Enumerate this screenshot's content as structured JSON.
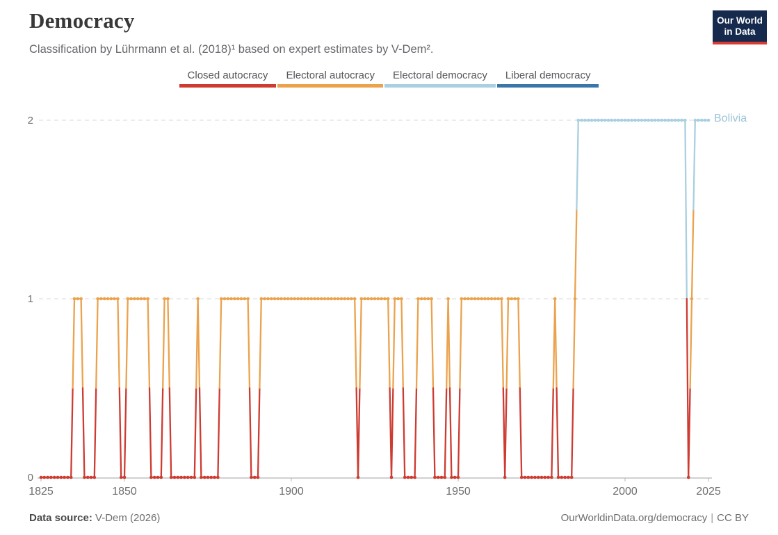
{
  "header": {
    "title": "Democracy",
    "subtitle": "Classification by Lührmann et al. (2018)¹ based on expert estimates by V-Dem²."
  },
  "logo": {
    "line1": "Our World",
    "line2": "in Data"
  },
  "legend": [
    {
      "label": "Closed autocracy",
      "value": 0,
      "color": "#cd3b31"
    },
    {
      "label": "Electoral autocracy",
      "value": 1,
      "color": "#eba24d"
    },
    {
      "label": "Electoral democracy",
      "value": 2,
      "color": "#a9cfe0"
    },
    {
      "label": "Liberal democracy",
      "value": 3,
      "color": "#3b76a8"
    }
  ],
  "chart_data": {
    "type": "line",
    "title": "Democracy",
    "entity": "Bolivia",
    "entity_label_color": "#9cc4d7",
    "xlabel": "",
    "ylabel": "",
    "x_range": [
      1825,
      2025
    ],
    "y_range": [
      0,
      2
    ],
    "x_ticks": [
      1825,
      1850,
      1900,
      1950,
      2000,
      2025
    ],
    "y_ticks": [
      0,
      1,
      2
    ],
    "grid": "dashed horizontal gridlines at y=1 and y=2, solid baseline at y=0",
    "legend_position": "top-center",
    "value_labels": {
      "0": "Closed autocracy",
      "1": "Electoral autocracy",
      "2": "Electoral democracy",
      "3": "Liberal democracy"
    },
    "value_colors": {
      "0": "#cd3b31",
      "1": "#eba24d",
      "2": "#a9cfe0",
      "3": "#3b76a8"
    },
    "series": [
      {
        "name": "Bolivia",
        "segments_note": "each entry is [startYear, endYear, regimeValue]; one data point per year",
        "segments": [
          [
            1825,
            1834,
            0
          ],
          [
            1835,
            1837,
            1
          ],
          [
            1838,
            1841,
            0
          ],
          [
            1842,
            1848,
            1
          ],
          [
            1849,
            1850,
            0
          ],
          [
            1851,
            1857,
            1
          ],
          [
            1858,
            1861,
            0
          ],
          [
            1862,
            1863,
            1
          ],
          [
            1864,
            1871,
            0
          ],
          [
            1872,
            1872,
            1
          ],
          [
            1873,
            1878,
            0
          ],
          [
            1879,
            1887,
            1
          ],
          [
            1888,
            1890,
            0
          ],
          [
            1891,
            1919,
            1
          ],
          [
            1920,
            1920,
            0
          ],
          [
            1921,
            1929,
            1
          ],
          [
            1930,
            1930,
            0
          ],
          [
            1931,
            1933,
            1
          ],
          [
            1934,
            1937,
            0
          ],
          [
            1938,
            1942,
            1
          ],
          [
            1943,
            1946,
            0
          ],
          [
            1947,
            1947,
            1
          ],
          [
            1948,
            1950,
            0
          ],
          [
            1951,
            1963,
            1
          ],
          [
            1964,
            1964,
            0
          ],
          [
            1965,
            1968,
            1
          ],
          [
            1969,
            1978,
            0
          ],
          [
            1979,
            1979,
            1
          ],
          [
            1980,
            1984,
            0
          ],
          [
            1985,
            1985,
            1
          ],
          [
            1986,
            2018,
            2
          ],
          [
            2019,
            2019,
            0
          ],
          [
            2020,
            2020,
            1
          ],
          [
            2021,
            2025,
            2
          ]
        ]
      }
    ]
  },
  "footer": {
    "source_label": "Data source:",
    "source_value": "V-Dem (2026)",
    "url": "OurWorldinData.org/democracy",
    "separator": "|",
    "license": "CC BY"
  }
}
